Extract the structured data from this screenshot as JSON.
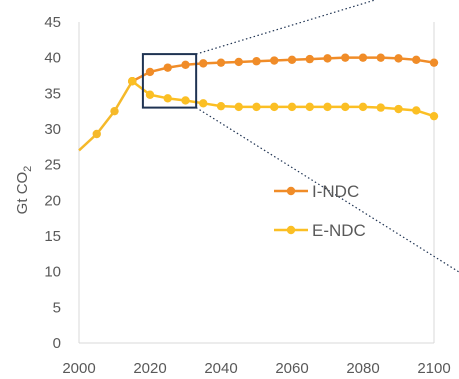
{
  "chart_data": {
    "type": "line",
    "title": "",
    "xlabel": "",
    "ylabel": "Gt CO",
    "ylabel_sub": "2",
    "xlim": [
      2000,
      2100
    ],
    "ylim": [
      0,
      45
    ],
    "xticks": [
      2000,
      2020,
      2040,
      2060,
      2080,
      2100
    ],
    "yticks": [
      0,
      5,
      10,
      15,
      20,
      25,
      30,
      35,
      40,
      45
    ],
    "legend_position": "right-middle",
    "grid": false,
    "historical": {
      "color": "#f5b92a",
      "x": [
        2000,
        2005,
        2010,
        2015
      ],
      "values": [
        27.0,
        29.3,
        32.5,
        36.7
      ]
    },
    "series": [
      {
        "name": "I-NDC",
        "color": "#f08c28",
        "x": [
          2015,
          2020,
          2025,
          2030,
          2035,
          2040,
          2045,
          2050,
          2055,
          2060,
          2065,
          2070,
          2075,
          2080,
          2085,
          2090,
          2095,
          2100
        ],
        "values": [
          36.7,
          38.0,
          38.6,
          39.0,
          39.2,
          39.3,
          39.4,
          39.5,
          39.6,
          39.7,
          39.8,
          39.9,
          40.0,
          40.0,
          40.0,
          39.9,
          39.7,
          39.3
        ]
      },
      {
        "name": "E-NDC",
        "color": "#fbbf24",
        "x": [
          2015,
          2020,
          2025,
          2030,
          2035,
          2040,
          2045,
          2050,
          2055,
          2060,
          2065,
          2070,
          2075,
          2080,
          2085,
          2090,
          2095,
          2100
        ],
        "values": [
          36.7,
          34.8,
          34.3,
          34.0,
          33.6,
          33.2,
          33.1,
          33.1,
          33.1,
          33.1,
          33.1,
          33.1,
          33.1,
          33.1,
          33.0,
          32.8,
          32.6,
          31.8
        ]
      }
    ],
    "zoom_box": {
      "x": [
        2018,
        2033
      ],
      "y": [
        33,
        40.5
      ]
    }
  }
}
